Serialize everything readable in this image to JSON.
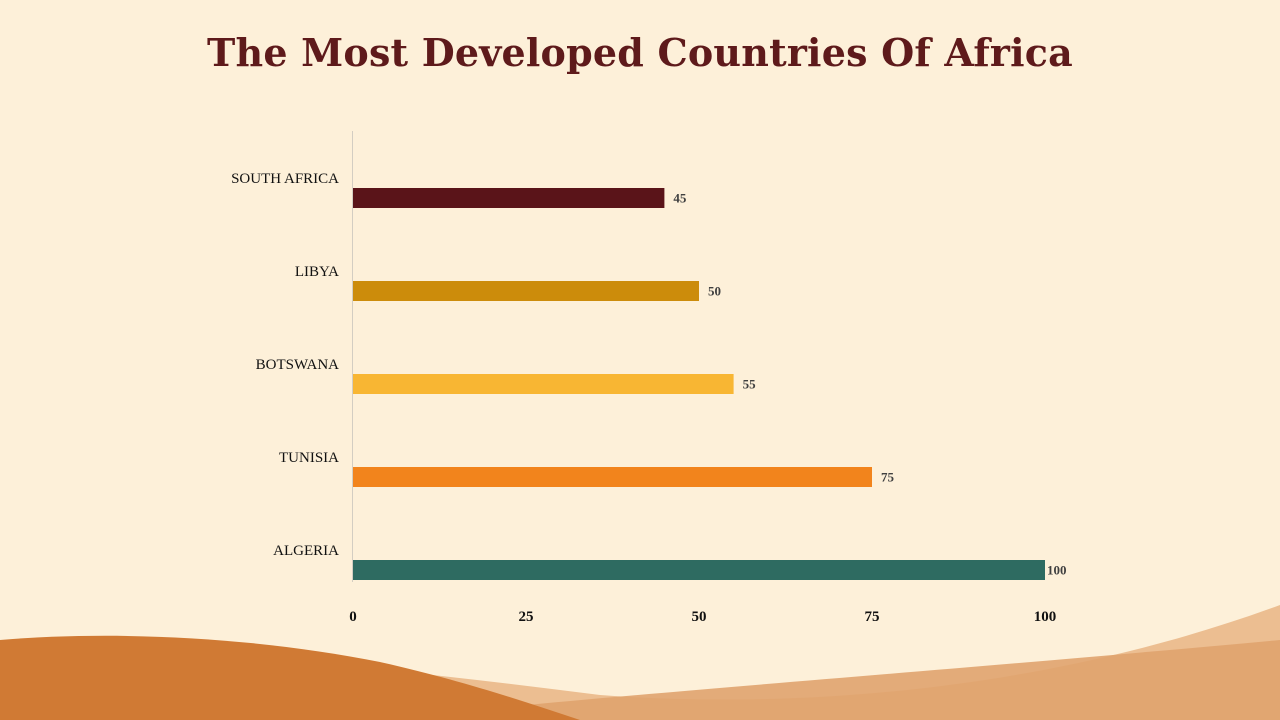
{
  "slide": {
    "title": "The Most Developed Countries Of Africa",
    "background_color": "#fdf0d9",
    "title_color": "#5e1a1b"
  },
  "chart_data": {
    "type": "bar",
    "orientation": "horizontal",
    "categories": [
      "SOUTH AFRICA",
      "LIBYA",
      "BOTSWANA",
      "TUNISIA",
      "ALGERIA"
    ],
    "values": [
      45,
      50,
      55,
      75,
      100
    ],
    "value_labels": [
      "45",
      "50",
      "55",
      "75",
      "100"
    ],
    "colors": [
      "#5a1419",
      "#cc8c0b",
      "#f8b633",
      "#f2841c",
      "#2e6b61"
    ],
    "xlim": [
      0,
      100
    ],
    "xticks": [
      0,
      25,
      50,
      75,
      100
    ],
    "xtick_labels": [
      "0",
      "25",
      "50",
      "75",
      "100"
    ],
    "title": "The Most Developed Countries Of Africa",
    "xlabel": "",
    "ylabel": "",
    "grid": false,
    "legend": "none"
  }
}
